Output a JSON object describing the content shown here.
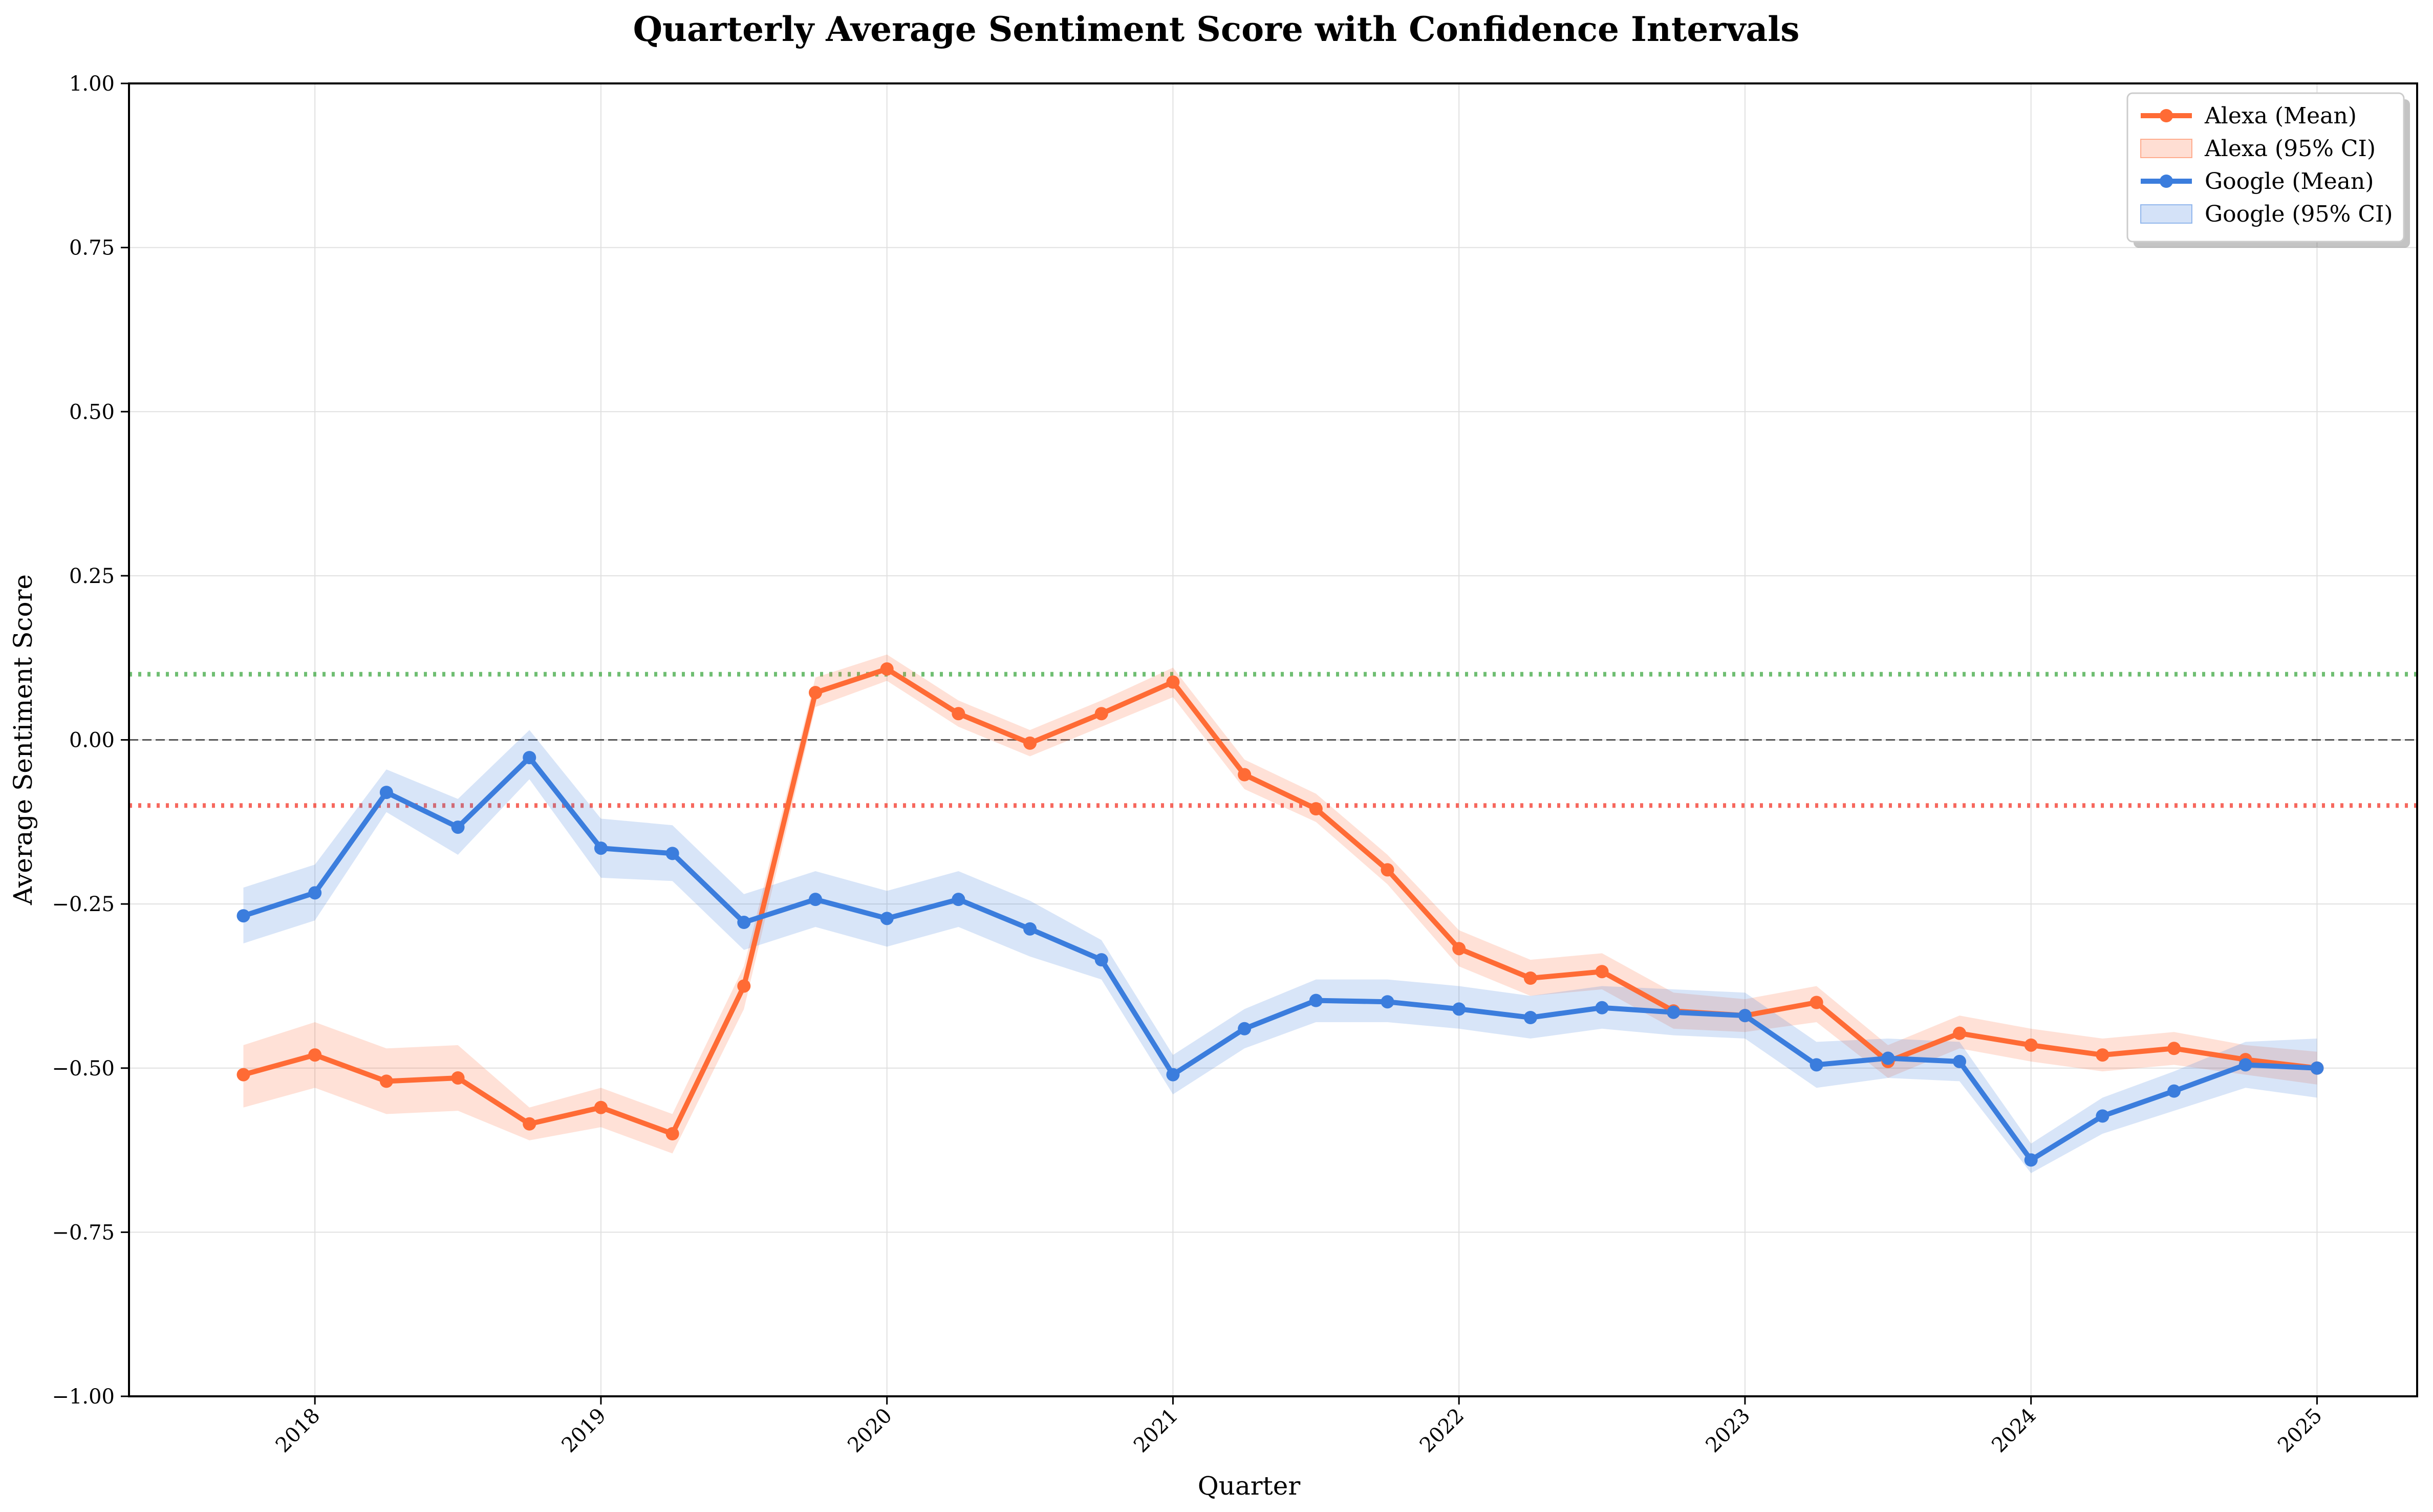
{
  "chart_data": {
    "type": "line",
    "title": "Quarterly Average Sentiment Score with Confidence Intervals",
    "xlabel": "Quarter",
    "ylabel": "Average Sentiment Score",
    "ylim": [
      -1.0,
      1.0
    ],
    "xlim": [
      2017.35,
      2025.35
    ],
    "yticks": [
      -1.0,
      -0.75,
      -0.5,
      -0.25,
      0.0,
      0.25,
      0.5,
      0.75,
      1.0
    ],
    "ytick_labels": [
      "−1.00",
      "−0.75",
      "−0.50",
      "−0.25",
      "0.00",
      "0.25",
      "0.50",
      "0.75",
      "1.00"
    ],
    "xticks": [
      2018,
      2019,
      2020,
      2021,
      2022,
      2023,
      2024,
      2025
    ],
    "xtick_labels": [
      "2018",
      "2019",
      "2020",
      "2021",
      "2022",
      "2023",
      "2024",
      "2025"
    ],
    "grid": true,
    "legend_position": "top-right",
    "reference_lines": [
      {
        "y": 0.1,
        "color": "#4caf50",
        "style": "dotted"
      },
      {
        "y": -0.1,
        "color": "#f44336",
        "style": "dotted"
      },
      {
        "y": 0.0,
        "color": "#555555",
        "style": "dashed"
      }
    ],
    "x": [
      2017.75,
      2018.0,
      2018.25,
      2018.5,
      2018.75,
      2019.0,
      2019.25,
      2019.5,
      2019.75,
      2020.0,
      2020.25,
      2020.5,
      2020.75,
      2021.0,
      2021.25,
      2021.5,
      2021.75,
      2022.0,
      2022.25,
      2022.5,
      2022.75,
      2023.0,
      2023.25,
      2023.5,
      2023.75,
      2024.0,
      2024.25,
      2024.5,
      2024.75,
      2025.0
    ],
    "series": [
      {
        "name": "Alexa (Mean)",
        "ci_name": "Alexa (95% CI)",
        "color": "#ff6b35",
        "values": [
          -0.51,
          -0.48,
          -0.52,
          -0.515,
          -0.585,
          -0.56,
          -0.6,
          -0.375,
          0.072,
          0.108,
          0.04,
          -0.005,
          0.04,
          0.088,
          -0.053,
          -0.105,
          -0.198,
          -0.318,
          -0.363,
          -0.353,
          -0.413,
          -0.42,
          -0.4,
          -0.49,
          -0.447,
          -0.465,
          -0.48,
          -0.47,
          -0.487,
          -0.5
        ],
        "ci_lower": [
          -0.56,
          -0.53,
          -0.57,
          -0.565,
          -0.61,
          -0.59,
          -0.63,
          -0.41,
          0.05,
          0.09,
          0.02,
          -0.025,
          0.02,
          0.065,
          -0.075,
          -0.125,
          -0.22,
          -0.345,
          -0.39,
          -0.38,
          -0.44,
          -0.445,
          -0.43,
          -0.515,
          -0.47,
          -0.49,
          -0.505,
          -0.495,
          -0.51,
          -0.525
        ],
        "ci_upper": [
          -0.465,
          -0.43,
          -0.47,
          -0.465,
          -0.56,
          -0.53,
          -0.57,
          -0.345,
          0.095,
          0.13,
          0.06,
          0.015,
          0.06,
          0.11,
          -0.03,
          -0.082,
          -0.175,
          -0.29,
          -0.335,
          -0.325,
          -0.385,
          -0.395,
          -0.375,
          -0.465,
          -0.42,
          -0.44,
          -0.455,
          -0.445,
          -0.465,
          -0.475
        ]
      },
      {
        "name": "Google (Mean)",
        "ci_name": "Google (95% CI)",
        "color": "#3b7ddd",
        "values": [
          -0.268,
          -0.233,
          -0.08,
          -0.133,
          -0.027,
          -0.165,
          -0.173,
          -0.278,
          -0.243,
          -0.272,
          -0.243,
          -0.288,
          -0.335,
          -0.51,
          -0.44,
          -0.397,
          -0.399,
          -0.41,
          -0.423,
          -0.408,
          -0.415,
          -0.42,
          -0.495,
          -0.485,
          -0.49,
          -0.64,
          -0.573,
          -0.535,
          -0.495,
          -0.5
        ],
        "ci_lower": [
          -0.31,
          -0.275,
          -0.11,
          -0.175,
          -0.06,
          -0.21,
          -0.215,
          -0.32,
          -0.285,
          -0.315,
          -0.285,
          -0.33,
          -0.365,
          -0.54,
          -0.47,
          -0.43,
          -0.43,
          -0.44,
          -0.455,
          -0.44,
          -0.45,
          -0.455,
          -0.53,
          -0.515,
          -0.52,
          -0.66,
          -0.6,
          -0.565,
          -0.53,
          -0.545
        ],
        "ci_upper": [
          -0.225,
          -0.19,
          -0.045,
          -0.09,
          0.015,
          -0.12,
          -0.13,
          -0.235,
          -0.2,
          -0.23,
          -0.2,
          -0.245,
          -0.305,
          -0.48,
          -0.41,
          -0.365,
          -0.365,
          -0.375,
          -0.39,
          -0.375,
          -0.38,
          -0.385,
          -0.46,
          -0.455,
          -0.46,
          -0.615,
          -0.545,
          -0.505,
          -0.46,
          -0.455
        ]
      }
    ]
  }
}
